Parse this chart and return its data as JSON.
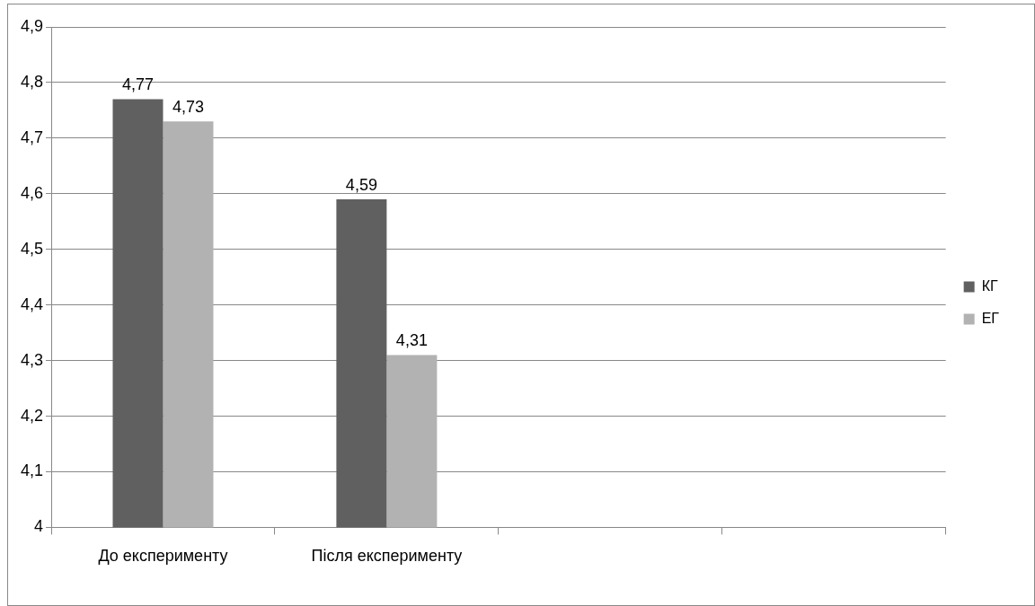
{
  "chart_data": {
    "type": "bar",
    "categories": [
      "До експерименту",
      "Після експерименту",
      null,
      null
    ],
    "series": [
      {
        "name": "КГ",
        "color": "#606060",
        "values": [
          4.77,
          4.59,
          null,
          null
        ],
        "value_labels": [
          "4,77",
          "4,59",
          null,
          null
        ]
      },
      {
        "name": "ЕГ",
        "color": "#b2b2b2",
        "values": [
          4.73,
          4.31,
          null,
          null
        ],
        "value_labels": [
          "4,73",
          "4,31",
          null,
          null
        ]
      }
    ],
    "ylim": [
      4,
      4.9
    ],
    "yticks": [
      4,
      {
        "value": 4.1,
        "label": "4,1"
      },
      {
        "value": 4.2,
        "label": "4,2"
      },
      {
        "value": 4.3,
        "label": "4,3"
      },
      {
        "value": 4.4,
        "label": "4,4"
      },
      {
        "value": 4.5,
        "label": "4,5"
      },
      {
        "value": 4.6,
        "label": "4,6"
      },
      {
        "value": 4.7,
        "label": "4,7"
      },
      {
        "value": 4.8,
        "label": "4,8"
      },
      {
        "value": 4.9,
        "label": "4,9"
      }
    ],
    "grid": "y",
    "legend": "right"
  }
}
